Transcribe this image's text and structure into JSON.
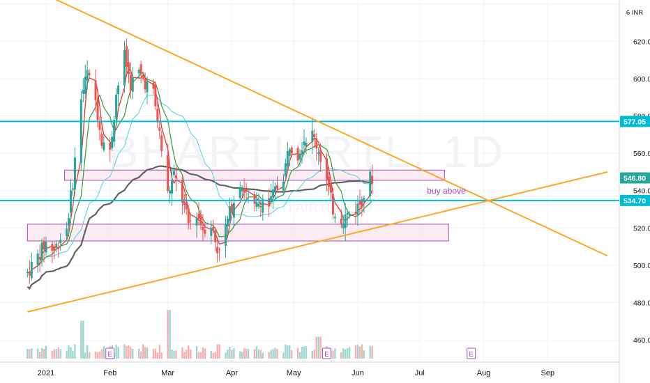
{
  "header": {
    "currency_label": "6 INR"
  },
  "watermark": {
    "symbol": "BHARTIARTL",
    "interval": "1D",
    "sub": "BHARTI AIRTEL LTD"
  },
  "colors": {
    "up": "#26a69a",
    "down": "#ef5350",
    "trend": "#ffa726",
    "support_line": "#00bcd4",
    "zone": "#ab47bc",
    "zone_fill": "#f7e0e8",
    "ema_fast": "#e53935",
    "ema_slow": "#43a047",
    "ma50": "#4dd0e1",
    "ma200": "#616161",
    "step": "#1e88e5",
    "step2": "#ff9800"
  },
  "annotation": {
    "buy_text": "buy above"
  },
  "chart_data": {
    "type": "candlestick",
    "title": "",
    "xlabel": "",
    "ylabel": "",
    "ylim": [
      448,
      650
    ],
    "y_ticks": [
      460,
      480,
      500,
      520,
      540,
      560,
      580,
      600,
      620,
      640
    ],
    "y_tick_labels": [
      "460.00",
      "480.00",
      "500.00",
      "520.00",
      "540.00",
      "560.00",
      "580.00",
      "600.00",
      "620.00",
      ""
    ],
    "x_ticks": [
      {
        "label": "2021",
        "date": "2021-01-01"
      },
      {
        "label": "Feb",
        "date": "2021-02-01"
      },
      {
        "label": "Mar",
        "date": "2021-03-01"
      },
      {
        "label": "Apr",
        "date": "2021-04-01"
      },
      {
        "label": "May",
        "date": "2021-05-01"
      },
      {
        "label": "Jun",
        "date": "2021-06-01"
      },
      {
        "label": "Jul",
        "date": "2021-07-01"
      },
      {
        "label": "Aug",
        "date": "2021-08-01"
      },
      {
        "label": "Sep",
        "date": "2021-09-01"
      }
    ],
    "date_range": [
      "2020-12-23",
      "2021-09-30"
    ],
    "price_labels": [
      {
        "value": 577.05,
        "text": "577.05",
        "kind": "support"
      },
      {
        "value": 546.8,
        "text": "546.80",
        "kind": "last"
      },
      {
        "value": 534.7,
        "text": "534.70",
        "kind": "support"
      }
    ],
    "horizontal_lines": [
      577.05,
      534.7
    ],
    "zones": [
      {
        "from_date": "2021-01-10",
        "to_date": "2021-07-13",
        "low": 545.5,
        "high": 551.0
      },
      {
        "from_date": "2020-12-23",
        "to_date": "2021-07-15",
        "low": 513.0,
        "high": 522.0
      }
    ],
    "trendlines": [
      {
        "name": "Resistance",
        "from": [
          "2020-12-20",
          651
        ],
        "to": [
          "2021-09-30",
          505
        ]
      },
      {
        "name": "Support",
        "from": [
          "2020-12-23",
          475
        ],
        "to": [
          "2021-09-30",
          550
        ]
      }
    ],
    "earnings_markers": [
      {
        "label": "E",
        "date": "2021-02-01"
      },
      {
        "label": "E",
        "date": "2021-05-17"
      },
      {
        "label": "E",
        "date": "2021-07-26"
      }
    ],
    "close_series": [
      {
        "d": "2020-12-23",
        "c": 496
      },
      {
        "d": "2020-12-28",
        "c": 505
      },
      {
        "d": "2021-01-01",
        "c": 512
      },
      {
        "d": "2021-01-05",
        "c": 508
      },
      {
        "d": "2021-01-08",
        "c": 515
      },
      {
        "d": "2021-01-11",
        "c": 520
      },
      {
        "d": "2021-01-14",
        "c": 545
      },
      {
        "d": "2021-01-18",
        "c": 590
      },
      {
        "d": "2021-01-21",
        "c": 603
      },
      {
        "d": "2021-01-25",
        "c": 588
      },
      {
        "d": "2021-01-28",
        "c": 568
      },
      {
        "d": "2021-02-01",
        "c": 560
      },
      {
        "d": "2021-02-04",
        "c": 592
      },
      {
        "d": "2021-02-08",
        "c": 612
      },
      {
        "d": "2021-02-11",
        "c": 597
      },
      {
        "d": "2021-02-15",
        "c": 603
      },
      {
        "d": "2021-02-18",
        "c": 598
      },
      {
        "d": "2021-02-22",
        "c": 592
      },
      {
        "d": "2021-02-25",
        "c": 570
      },
      {
        "d": "2021-03-01",
        "c": 538
      },
      {
        "d": "2021-03-04",
        "c": 548
      },
      {
        "d": "2021-03-08",
        "c": 535
      },
      {
        "d": "2021-03-11",
        "c": 522
      },
      {
        "d": "2021-03-15",
        "c": 528
      },
      {
        "d": "2021-03-18",
        "c": 520
      },
      {
        "d": "2021-03-22",
        "c": 522
      },
      {
        "d": "2021-03-25",
        "c": 508
      },
      {
        "d": "2021-03-29",
        "c": 520
      },
      {
        "d": "2021-04-01",
        "c": 532
      },
      {
        "d": "2021-04-05",
        "c": 545
      },
      {
        "d": "2021-04-08",
        "c": 538
      },
      {
        "d": "2021-04-12",
        "c": 530
      },
      {
        "d": "2021-04-15",
        "c": 535
      },
      {
        "d": "2021-04-19",
        "c": 532
      },
      {
        "d": "2021-04-22",
        "c": 540
      },
      {
        "d": "2021-04-26",
        "c": 548
      },
      {
        "d": "2021-04-29",
        "c": 565
      },
      {
        "d": "2021-05-03",
        "c": 560
      },
      {
        "d": "2021-05-06",
        "c": 568
      },
      {
        "d": "2021-05-10",
        "c": 570
      },
      {
        "d": "2021-05-13",
        "c": 562
      },
      {
        "d": "2021-05-17",
        "c": 545
      },
      {
        "d": "2021-05-20",
        "c": 530
      },
      {
        "d": "2021-05-24",
        "c": 525
      },
      {
        "d": "2021-05-27",
        "c": 527
      },
      {
        "d": "2021-05-31",
        "c": 530
      },
      {
        "d": "2021-06-03",
        "c": 535
      },
      {
        "d": "2021-06-07",
        "c": 546.8
      }
    ],
    "volume_spikes": [
      {
        "d": "2021-01-18",
        "v": 0.78
      },
      {
        "d": "2021-03-01",
        "v": 1.0
      },
      {
        "d": "2021-05-13",
        "v": 0.45
      }
    ]
  }
}
